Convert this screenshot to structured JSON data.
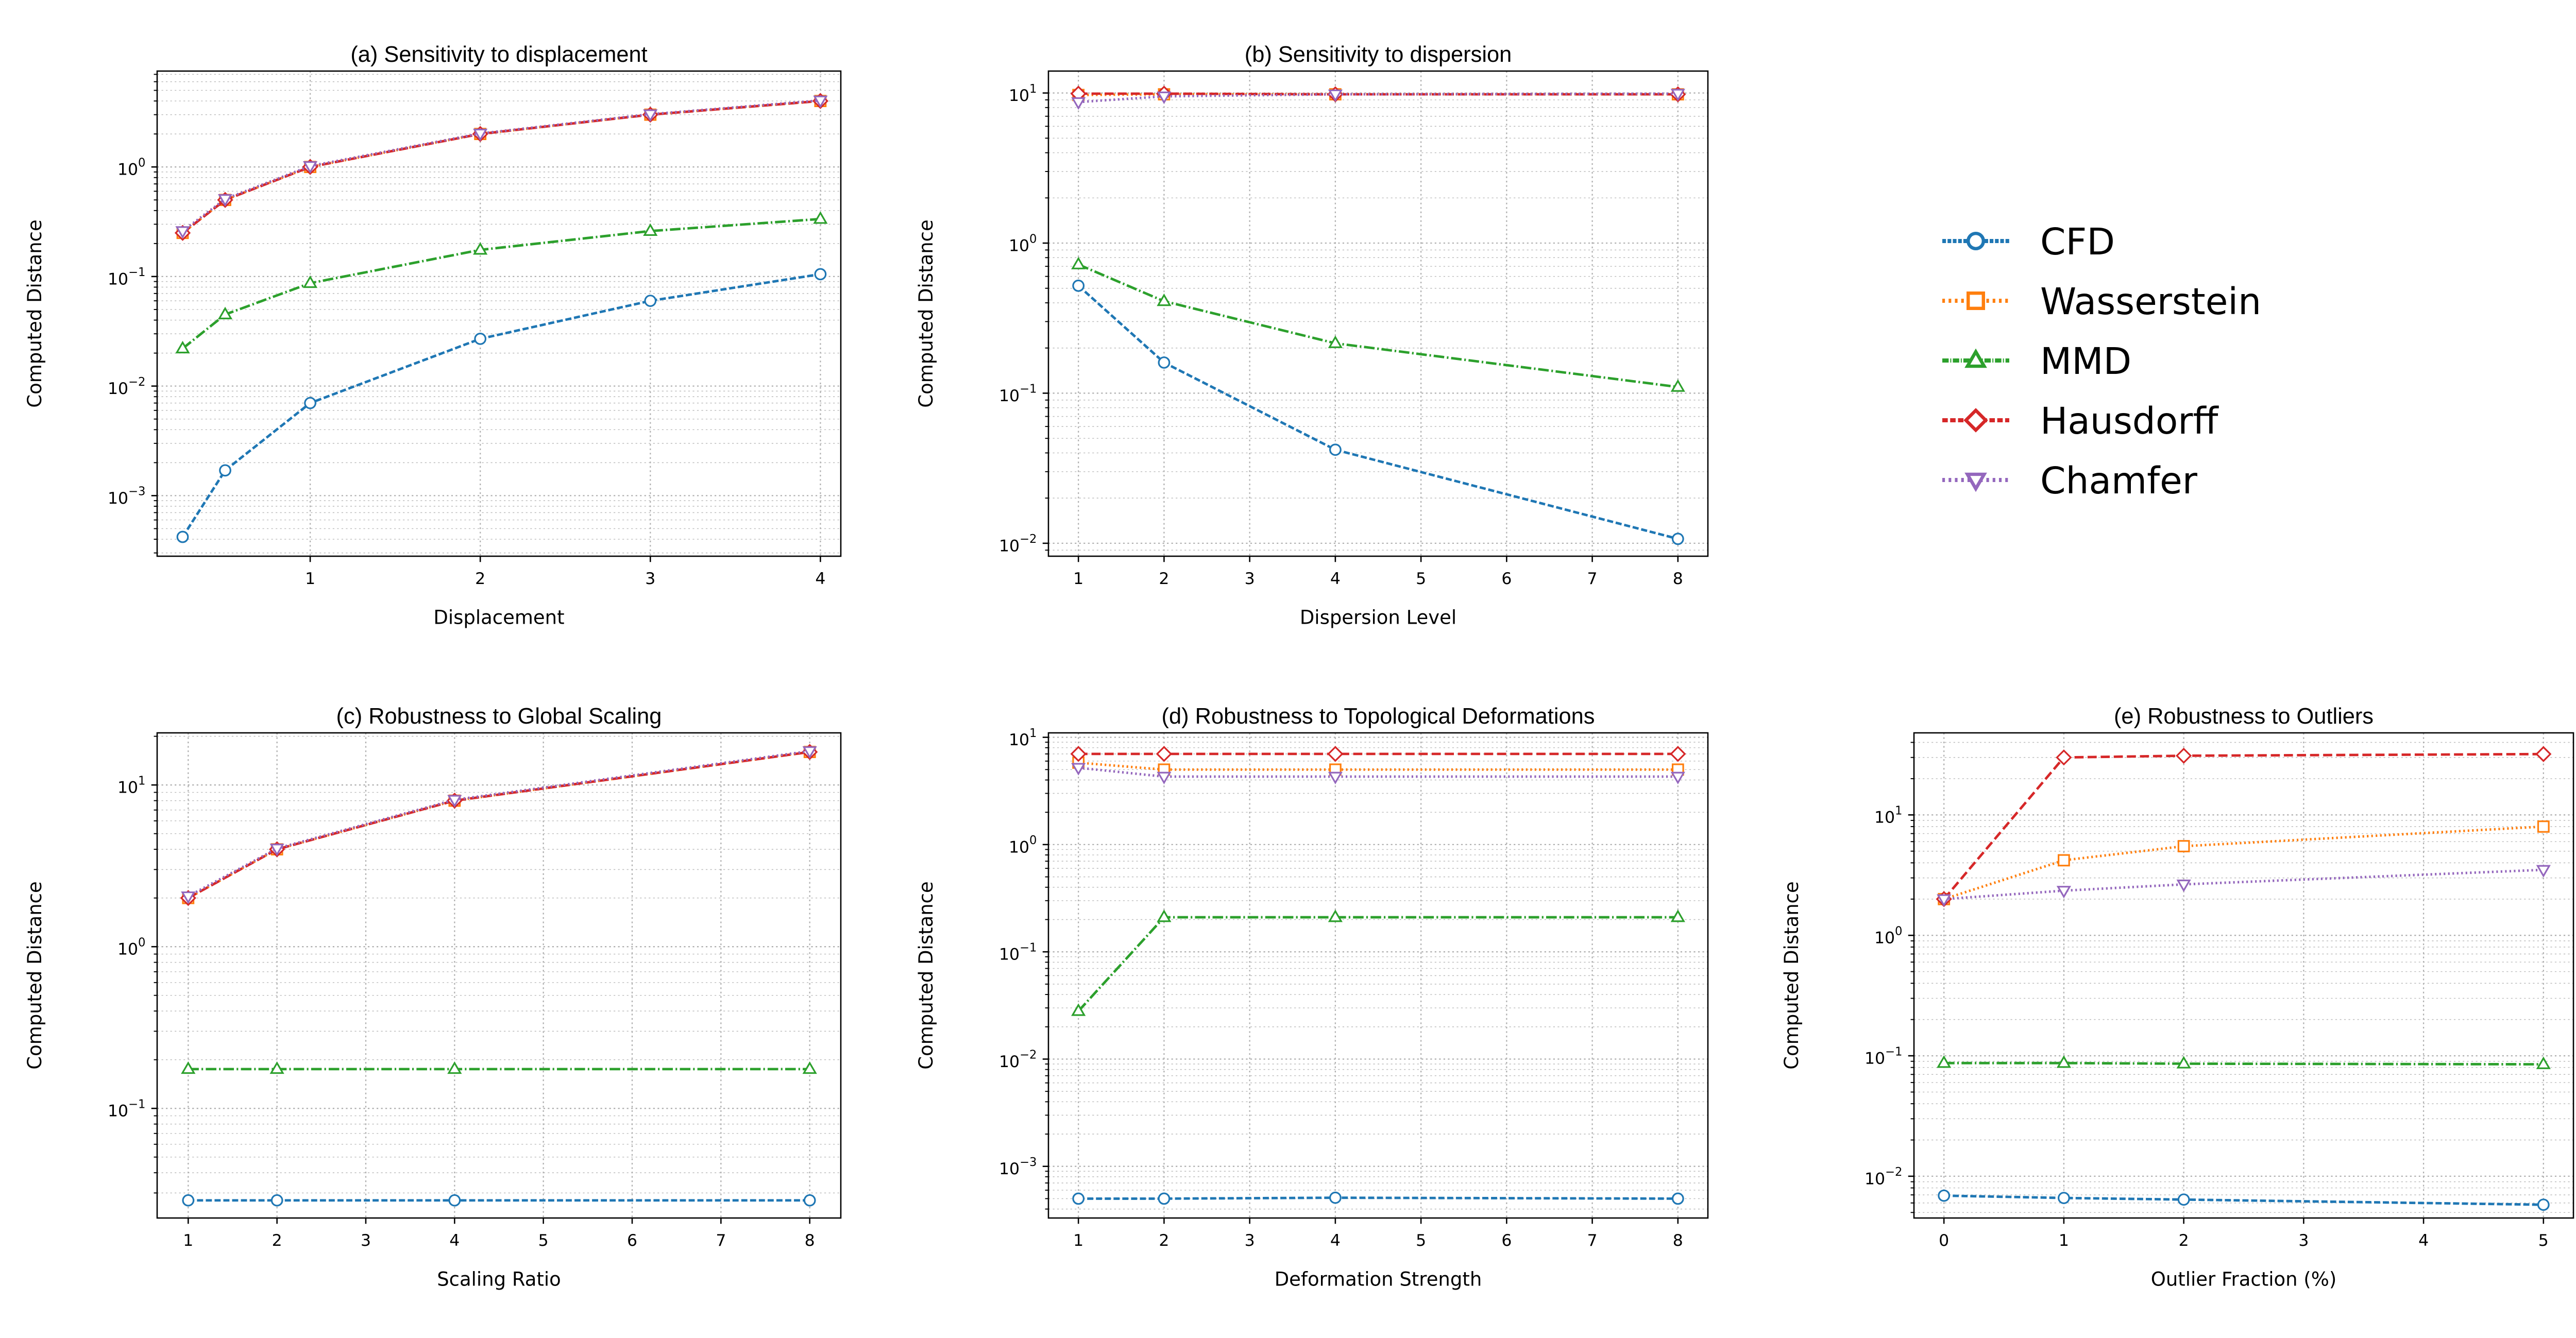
{
  "series_styles": {
    "CFD": {
      "color": "#1f77b4",
      "marker": "circle",
      "dash": "dashed"
    },
    "Wasserstein": {
      "color": "#ff7f0e",
      "marker": "square",
      "dash": "dotted"
    },
    "MMD": {
      "color": "#2ca02c",
      "marker": "triangle-up",
      "dash": "dashdot"
    },
    "Hausdorff": {
      "color": "#d62728",
      "marker": "diamond",
      "dash": "longdash"
    },
    "Chamfer": {
      "color": "#9467bd",
      "marker": "triangle-down",
      "dash": "dotted"
    }
  },
  "legend": {
    "entries": [
      "CFD",
      "Wasserstein",
      "MMD",
      "Hausdorff",
      "Chamfer"
    ],
    "placement": "right, beside row 1"
  },
  "chart_data": [
    {
      "id": "a",
      "type": "line",
      "title": "(a) Sensitivity to displacement",
      "xlabel": "Displacement",
      "ylabel": "Computed Distance",
      "yscale": "log",
      "grid": true,
      "xlim": [
        0.1,
        4.12
      ],
      "ylim": [
        0.00028,
        7.5
      ],
      "xticks": [
        1,
        2,
        3,
        4
      ],
      "xticklabels": [
        "1",
        "2",
        "3",
        "4"
      ],
      "yticks": [
        0.001,
        0.01,
        0.1,
        1
      ],
      "yticklabels": [
        "10^-3",
        "10^-2",
        "10^-1",
        "10^0"
      ],
      "series": [
        {
          "name": "CFD",
          "x": [
            0.25,
            0.5,
            1,
            2,
            3,
            4
          ],
          "y": [
            0.00042,
            0.0017,
            0.007,
            0.027,
            0.06,
            0.105
          ]
        },
        {
          "name": "Wasserstein",
          "x": [
            0.25,
            0.5,
            1,
            2,
            3,
            4
          ],
          "y": [
            0.25,
            0.5,
            1,
            2,
            3,
            4
          ]
        },
        {
          "name": "MMD",
          "x": [
            0.25,
            0.5,
            1,
            2,
            3,
            4
          ],
          "y": [
            0.022,
            0.045,
            0.087,
            0.175,
            0.26,
            0.335
          ]
        },
        {
          "name": "Hausdorff",
          "x": [
            0.25,
            0.5,
            1,
            2,
            3,
            4
          ],
          "y": [
            0.25,
            0.5,
            1,
            2,
            3,
            4
          ]
        },
        {
          "name": "Chamfer",
          "x": [
            0.25,
            0.5,
            1,
            2,
            3,
            4
          ],
          "y": [
            0.26,
            0.51,
            1.02,
            2.02,
            3.03,
            4.05
          ]
        }
      ]
    },
    {
      "id": "b",
      "type": "line",
      "title": "(b) Sensitivity to dispersion",
      "xlabel": "Dispersion Level",
      "ylabel": "Computed Distance",
      "yscale": "log",
      "grid": true,
      "xlim": [
        0.65,
        8.35
      ],
      "ylim": [
        0.0082,
        14
      ],
      "xticks": [
        1,
        2,
        3,
        4,
        5,
        6,
        7,
        8
      ],
      "xticklabels": [
        "1",
        "2",
        "3",
        "4",
        "5",
        "6",
        "7",
        "8"
      ],
      "yticks": [
        0.01,
        0.1,
        1,
        10
      ],
      "yticklabels": [
        "10^-2",
        "10^-1",
        "10^0",
        "10^1"
      ],
      "series": [
        {
          "name": "CFD",
          "x": [
            1,
            2,
            4,
            8
          ],
          "y": [
            0.52,
            0.16,
            0.042,
            0.0107
          ]
        },
        {
          "name": "Wasserstein",
          "x": [
            1,
            2,
            4,
            8
          ],
          "y": [
            9.7,
            9.8,
            9.8,
            9.8
          ]
        },
        {
          "name": "MMD",
          "x": [
            1,
            2,
            4,
            8
          ],
          "y": [
            0.72,
            0.41,
            0.215,
            0.11
          ]
        },
        {
          "name": "Hausdorff",
          "x": [
            1,
            2,
            4,
            8
          ],
          "y": [
            9.9,
            9.9,
            9.8,
            9.8
          ]
        },
        {
          "name": "Chamfer",
          "x": [
            1,
            2,
            4,
            8
          ],
          "y": [
            8.7,
            9.5,
            9.8,
            9.9
          ]
        }
      ]
    },
    {
      "id": "c",
      "type": "line",
      "title": "(c) Robustness to Global Scaling",
      "xlabel": "Scaling Ratio",
      "ylabel": "Computed Distance",
      "yscale": "log",
      "grid": true,
      "xlim": [
        0.65,
        8.35
      ],
      "ylim": [
        0.021,
        21
      ],
      "xticks": [
        1,
        2,
        3,
        4,
        5,
        6,
        7,
        8
      ],
      "xticklabels": [
        "1",
        "2",
        "3",
        "4",
        "5",
        "6",
        "7",
        "8"
      ],
      "yticks": [
        0.1,
        1,
        10
      ],
      "yticklabels": [
        "10^-1",
        "10^0",
        "10^1"
      ],
      "series": [
        {
          "name": "CFD",
          "x": [
            1,
            2,
            4,
            8
          ],
          "y": [
            0.027,
            0.027,
            0.027,
            0.027
          ]
        },
        {
          "name": "Wasserstein",
          "x": [
            1,
            2,
            4,
            8
          ],
          "y": [
            2,
            4,
            8,
            16
          ]
        },
        {
          "name": "MMD",
          "x": [
            1,
            2,
            4,
            8
          ],
          "y": [
            0.175,
            0.175,
            0.175,
            0.175
          ]
        },
        {
          "name": "Hausdorff",
          "x": [
            1,
            2,
            4,
            8
          ],
          "y": [
            2,
            4,
            8,
            16
          ]
        },
        {
          "name": "Chamfer",
          "x": [
            1,
            2,
            4,
            8
          ],
          "y": [
            2.05,
            4.05,
            8.1,
            16.2
          ]
        }
      ]
    },
    {
      "id": "d",
      "type": "line",
      "title": "(d) Robustness to Topological Deformations",
      "xlabel": "Deformation Strength",
      "ylabel": "Computed Distance",
      "yscale": "log",
      "grid": true,
      "xlim": [
        0.65,
        8.35
      ],
      "ylim": [
        0.00033,
        11
      ],
      "xticks": [
        1,
        2,
        3,
        4,
        5,
        6,
        7,
        8
      ],
      "xticklabels": [
        "1",
        "2",
        "3",
        "4",
        "5",
        "6",
        "7",
        "8"
      ],
      "yticks": [
        0.001,
        0.01,
        0.1,
        1,
        10
      ],
      "yticklabels": [
        "10^-3",
        "10^-2",
        "10^-1",
        "10^0",
        "10^1"
      ],
      "series": [
        {
          "name": "CFD",
          "x": [
            1,
            2,
            4,
            8
          ],
          "y": [
            0.0005,
            0.0005,
            0.00051,
            0.0005
          ]
        },
        {
          "name": "Wasserstein",
          "x": [
            1,
            2,
            4,
            8
          ],
          "y": [
            5.8,
            5.0,
            5.0,
            5.0
          ]
        },
        {
          "name": "MMD",
          "x": [
            1,
            2,
            4,
            8
          ],
          "y": [
            0.028,
            0.21,
            0.21,
            0.21
          ]
        },
        {
          "name": "Hausdorff",
          "x": [
            1,
            2,
            4,
            8
          ],
          "y": [
            7.0,
            7.0,
            7.0,
            7.0
          ]
        },
        {
          "name": "Chamfer",
          "x": [
            1,
            2,
            4,
            8
          ],
          "y": [
            5.2,
            4.3,
            4.3,
            4.3
          ]
        }
      ]
    },
    {
      "id": "e",
      "type": "line",
      "title": "(e) Robustness to Outliers",
      "xlabel": "Outlier Fraction (%)",
      "ylabel": "Computed Distance",
      "yscale": "log",
      "grid": true,
      "xlim": [
        -0.25,
        5.25
      ],
      "ylim": [
        0.0045,
        48
      ],
      "xticks": [
        0,
        1,
        2,
        3,
        4,
        5
      ],
      "xticklabels": [
        "0",
        "1",
        "2",
        "3",
        "4",
        "5"
      ],
      "yticks": [
        0.01,
        0.1,
        1,
        10
      ],
      "yticklabels": [
        "10^-2",
        "10^-1",
        "10^0",
        "10^1"
      ],
      "series": [
        {
          "name": "CFD",
          "x": [
            0,
            1,
            2,
            5
          ],
          "y": [
            0.0069,
            0.0066,
            0.0064,
            0.0058
          ]
        },
        {
          "name": "Wasserstein",
          "x": [
            0,
            1,
            2,
            5
          ],
          "y": [
            2.0,
            4.2,
            5.5,
            8.0
          ]
        },
        {
          "name": "MMD",
          "x": [
            0,
            1,
            2,
            5
          ],
          "y": [
            0.087,
            0.087,
            0.086,
            0.085
          ]
        },
        {
          "name": "Hausdorff",
          "x": [
            0,
            1,
            2,
            5
          ],
          "y": [
            2.0,
            30,
            31,
            32
          ]
        },
        {
          "name": "Chamfer",
          "x": [
            0,
            1,
            2,
            5
          ],
          "y": [
            2.0,
            2.35,
            2.65,
            3.5
          ]
        }
      ]
    }
  ]
}
